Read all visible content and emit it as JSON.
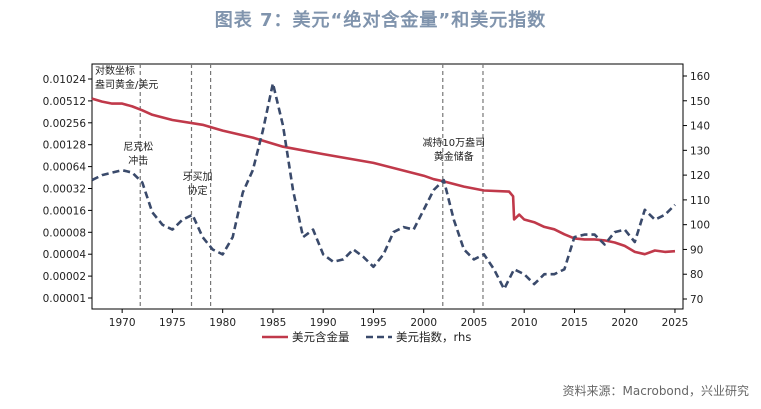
{
  "title": "图表 7：美元“绝对含金量”和美元指数",
  "source": "资料来源：Macrobond，兴业研究",
  "chart_data": {
    "type": "line",
    "x_ticks": [
      "1970",
      "1975",
      "1980",
      "1985",
      "1990",
      "1995",
      "2000",
      "2005",
      "2010",
      "2015",
      "2020",
      "2025"
    ],
    "left_ticks": [
      "0.00001",
      "0.00002",
      "0.00004",
      "0.00008",
      "0.00016",
      "0.00032",
      "0.00064",
      "0.00128",
      "0.00256",
      "0.00512",
      "0.01024"
    ],
    "right_ticks": [
      "70",
      "80",
      "90",
      "100",
      "110",
      "120",
      "130",
      "140",
      "150",
      "160"
    ],
    "left_scale": "log2",
    "ylim_left": [
      1e-05,
      0.01024
    ],
    "ylim_right": [
      70,
      160
    ],
    "xlim": [
      1967,
      2025.8
    ],
    "legend": [
      "美元含金量",
      "美元指数，rhs"
    ],
    "colors": {
      "gold": "#c0394a",
      "dxy": "#3a4a6b"
    },
    "annotations": [
      {
        "lines": [
          "对数坐标",
          "盎司黄金/美元"
        ],
        "x": 1967.3
      },
      {
        "lines": [
          "尼克松",
          "冲击"
        ],
        "x": 1971.6
      },
      {
        "lines": [
          "牙买加",
          "协定"
        ],
        "x": 1976.9
      },
      {
        "lines": [
          "减持10万盎司",
          "黄金储备"
        ],
        "x": 2002.4
      }
    ],
    "vlines": [
      1971.8,
      1976.9,
      1978.8,
      2001.9,
      2005.9
    ],
    "series": [
      {
        "name": "美元含金量",
        "axis": "left",
        "points": [
          [
            1967.0,
            0.0055
          ],
          [
            1968.0,
            0.005
          ],
          [
            1969.0,
            0.0047
          ],
          [
            1970.0,
            0.0047
          ],
          [
            1971.0,
            0.0043
          ],
          [
            1972.0,
            0.0038
          ],
          [
            1973.0,
            0.0033
          ],
          [
            1975.0,
            0.0028
          ],
          [
            1978.0,
            0.0024
          ],
          [
            1980.0,
            0.002
          ],
          [
            1983.0,
            0.0016
          ],
          [
            1986.0,
            0.0012
          ],
          [
            1990.0,
            0.00095
          ],
          [
            1995.0,
            0.00072
          ],
          [
            2000.0,
            0.00048
          ],
          [
            2001.0,
            0.00043
          ],
          [
            2002.0,
            0.0004
          ],
          [
            2004.0,
            0.00034
          ],
          [
            2006.0,
            0.0003
          ],
          [
            2008.5,
            0.00029
          ],
          [
            2008.9,
            0.00025
          ],
          [
            2009.0,
            0.00012
          ],
          [
            2009.5,
            0.00014
          ],
          [
            2010.0,
            0.00012
          ],
          [
            2011.0,
            0.00011
          ],
          [
            2012.0,
            9.5e-05
          ],
          [
            2013.0,
            8.8e-05
          ],
          [
            2014.0,
            7.5e-05
          ],
          [
            2015.0,
            6.6e-05
          ],
          [
            2016.0,
            6.4e-05
          ],
          [
            2017.0,
            6.4e-05
          ],
          [
            2018.0,
            6.2e-05
          ],
          [
            2019.0,
            5.8e-05
          ],
          [
            2020.0,
            5.2e-05
          ],
          [
            2021.0,
            4.3e-05
          ],
          [
            2022.0,
            4e-05
          ],
          [
            2023.0,
            4.5e-05
          ],
          [
            2024.0,
            4.3e-05
          ],
          [
            2025.0,
            4.4e-05
          ]
        ]
      },
      {
        "name": "美元指数，rhs",
        "axis": "right",
        "points": [
          [
            1967.0,
            118
          ],
          [
            1968.0,
            120
          ],
          [
            1969.0,
            121
          ],
          [
            1970.0,
            122
          ],
          [
            1971.0,
            121
          ],
          [
            1972.0,
            117
          ],
          [
            1973.0,
            105
          ],
          [
            1974.0,
            100
          ],
          [
            1975.0,
            98
          ],
          [
            1976.0,
            102
          ],
          [
            1977.0,
            104
          ],
          [
            1978.0,
            95
          ],
          [
            1979.0,
            90
          ],
          [
            1980.0,
            88
          ],
          [
            1981.0,
            95
          ],
          [
            1982.0,
            113
          ],
          [
            1983.0,
            122
          ],
          [
            1984.0,
            138
          ],
          [
            1985.0,
            157
          ],
          [
            1986.0,
            140
          ],
          [
            1987.0,
            114
          ],
          [
            1988.0,
            95
          ],
          [
            1989.0,
            98
          ],
          [
            1990.0,
            88
          ],
          [
            1991.0,
            85
          ],
          [
            1992.0,
            86
          ],
          [
            1993.0,
            90
          ],
          [
            1994.0,
            87
          ],
          [
            1995.0,
            83
          ],
          [
            1996.0,
            88
          ],
          [
            1997.0,
            97
          ],
          [
            1998.0,
            99
          ],
          [
            1999.0,
            98
          ],
          [
            2000.0,
            106
          ],
          [
            2001.0,
            114
          ],
          [
            2002.0,
            118
          ],
          [
            2003.0,
            102
          ],
          [
            2004.0,
            90
          ],
          [
            2005.0,
            86
          ],
          [
            2006.0,
            88
          ],
          [
            2007.0,
            82
          ],
          [
            2008.0,
            74
          ],
          [
            2009.0,
            82
          ],
          [
            2010.0,
            80
          ],
          [
            2011.0,
            76
          ],
          [
            2012.0,
            80
          ],
          [
            2013.0,
            80
          ],
          [
            2014.0,
            82
          ],
          [
            2015.0,
            95
          ],
          [
            2016.0,
            96
          ],
          [
            2017.0,
            96
          ],
          [
            2018.0,
            92
          ],
          [
            2019.0,
            97
          ],
          [
            2020.0,
            98
          ],
          [
            2021.0,
            93
          ],
          [
            2022.0,
            106
          ],
          [
            2023.0,
            102
          ],
          [
            2024.0,
            104
          ],
          [
            2025.0,
            108
          ]
        ]
      }
    ]
  }
}
